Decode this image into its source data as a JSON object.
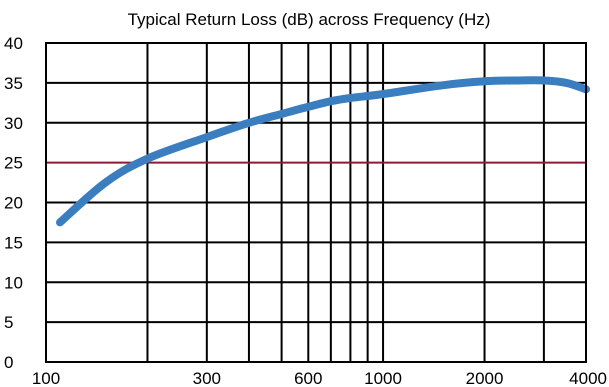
{
  "chart_data": {
    "type": "line",
    "title": "Typical Return Loss (dB) across Frequency (Hz)",
    "xlabel": "",
    "ylabel": "",
    "x_scale": "log",
    "xlim": [
      100,
      4000
    ],
    "ylim": [
      0,
      40
    ],
    "x_ticks": [
      {
        "value": 100,
        "label": "100"
      },
      {
        "value": 300,
        "label": "300"
      },
      {
        "value": 600,
        "label": "600"
      },
      {
        "value": 1000,
        "label": "1000"
      },
      {
        "value": 2000,
        "label": "2000"
      },
      {
        "value": 4000,
        "label": "4000"
      }
    ],
    "x_gridlines": [
      200,
      300,
      400,
      500,
      600,
      700,
      800,
      900,
      1000,
      2000,
      3000
    ],
    "y_ticks": [
      0,
      5,
      10,
      15,
      20,
      25,
      30,
      35,
      40
    ],
    "grid": true,
    "reference_line": {
      "y": 25,
      "color": "#8b1a3a"
    },
    "series": [
      {
        "color": "#3a7ec0",
        "x": [
          110,
          150,
          200,
          300,
          400,
          500,
          600,
          700,
          800,
          1000,
          1500,
          2000,
          2500,
          3000,
          3500,
          4000
        ],
        "y": [
          17.5,
          22.5,
          25.5,
          28.2,
          30.0,
          31.1,
          32.0,
          32.7,
          33.1,
          33.6,
          34.7,
          35.2,
          35.3,
          35.3,
          35.0,
          34.2
        ]
      }
    ]
  }
}
